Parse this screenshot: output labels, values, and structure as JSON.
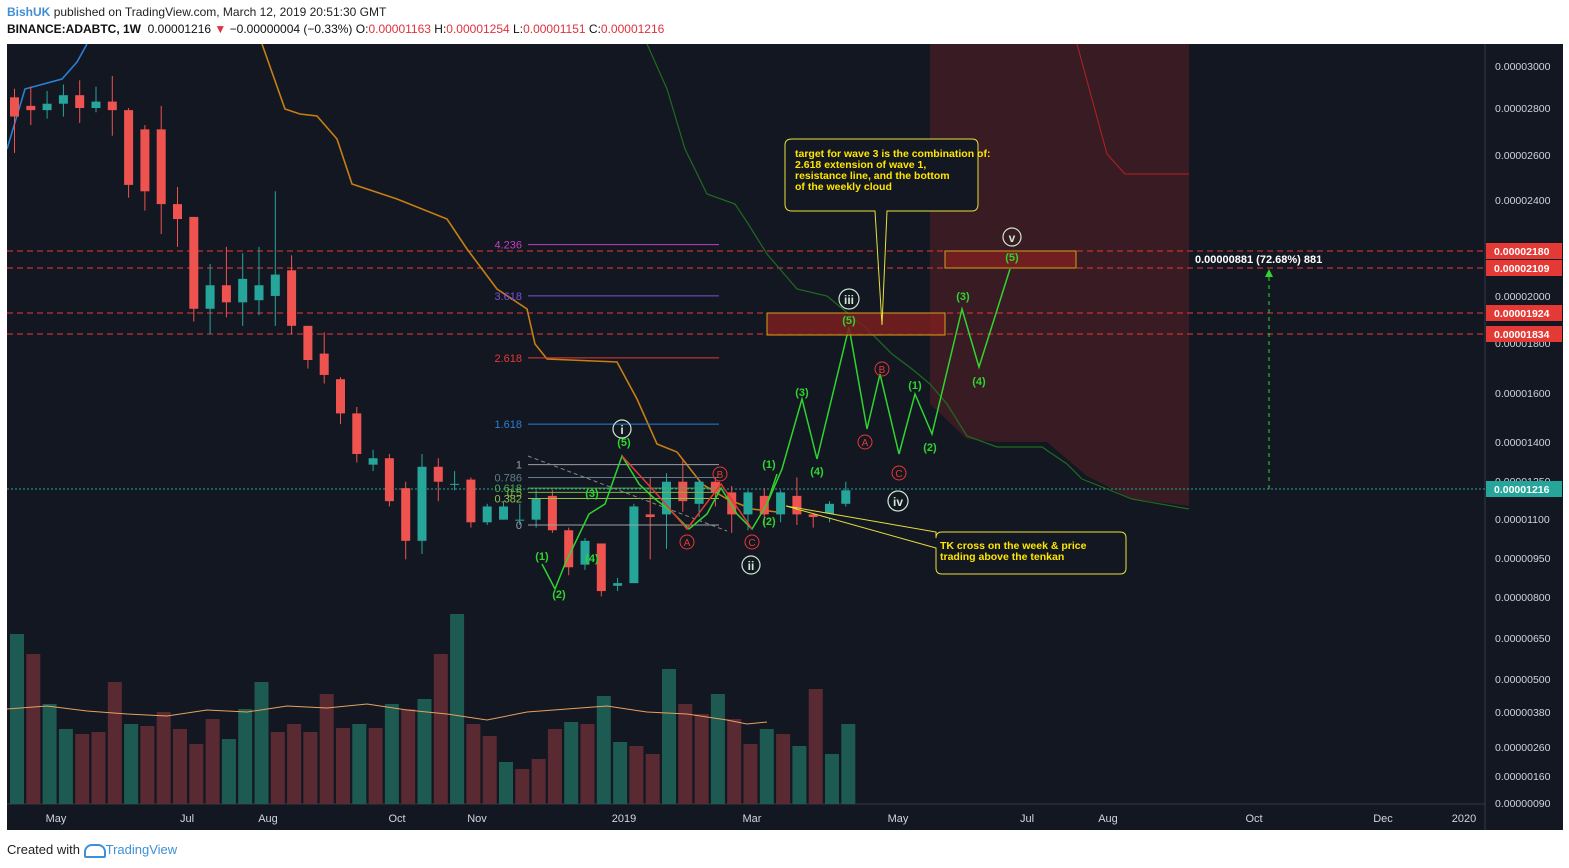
{
  "header": {
    "author": "BishUK",
    "published_text": "published on TradingView.com, March 12, 2019 20:51:30 GMT",
    "symbol": "BINANCE:ADABTC, 1W",
    "price": "0.00001216",
    "change_arrow": "▼",
    "change": "−0.00000004 (−0.33%)",
    "ohlc": [
      {
        "label": "O:",
        "value": "0.00001163"
      },
      {
        "label": "H:",
        "value": "0.00001254"
      },
      {
        "label": "L:",
        "value": "0.00001151"
      },
      {
        "label": "C:",
        "value": "0.00001216"
      }
    ]
  },
  "footer": {
    "created_with": "Created with",
    "brand": "TradingView"
  },
  "colors": {
    "background": "#131722",
    "up": "#26a69a",
    "down": "#ef5350",
    "tenkan": "#2a7fd4",
    "kijun": "#c77e12",
    "lagging": "#1f6b1f",
    "wave": "#2fd52f",
    "correction": "#e53935",
    "annotation_border": "#e8e03a"
  },
  "chart_data": {
    "type": "candlestick",
    "timeframe": "1W",
    "ylim": [
      7.5e-06,
      3.1e-06
    ],
    "y_ticks": [
      "0.00003000",
      "0.00002800",
      "0.00002600",
      "0.00002400",
      "0.00002000",
      "0.00001800",
      "0.00001600",
      "0.00001400",
      "0.00001250",
      "0.00001100",
      "0.00000950",
      "0.00000800",
      "0.00000650",
      "0.00000500",
      "0.00000380",
      "0.00000260",
      "0.00000160",
      "0.00000090"
    ],
    "y_price_labels": [
      {
        "value": "0.00002180",
        "color": "#e53935"
      },
      {
        "value": "0.00002109",
        "color": "#e53935"
      },
      {
        "value": "0.00001924",
        "color": "#e53935"
      },
      {
        "value": "0.00001834",
        "color": "#e53935"
      },
      {
        "value": "0.00001216",
        "color": "#26a69a"
      }
    ],
    "x_ticks": [
      "May",
      "Jul",
      "Aug",
      "Oct",
      "Nov",
      "2019",
      "Mar",
      "May",
      "Jul",
      "Aug",
      "Oct",
      "Dec",
      "2020"
    ],
    "candles": [
      [
        3.05e-05,
        2.96e-05,
        3.09e-05,
        2.79e-05
      ],
      [
        3.01e-05,
        2.99e-05,
        3.1e-05,
        2.92e-05
      ],
      [
        2.99e-05,
        3.02e-05,
        3.08e-05,
        2.95e-05
      ],
      [
        3.02e-05,
        3.06e-05,
        3.11e-05,
        2.96e-05
      ],
      [
        3.06e-05,
        3e-05,
        3.13e-05,
        2.93e-05
      ],
      [
        3e-05,
        3.03e-05,
        3.1e-05,
        2.98e-05
      ],
      [
        3.03e-05,
        2.99e-05,
        3.15e-05,
        2.87e-05
      ],
      [
        2.99e-05,
        2.64e-05,
        3e-05,
        2.58e-05
      ],
      [
        2.9e-05,
        2.61e-05,
        2.92e-05,
        2.52e-05
      ],
      [
        2.9e-05,
        2.55e-05,
        3.01e-05,
        2.41e-05
      ],
      [
        2.55e-05,
        2.48e-05,
        2.63e-05,
        2.35e-05
      ],
      [
        2.49e-05,
        2.06e-05,
        2.49e-05,
        2e-05
      ],
      [
        2.06e-05,
        2.17e-05,
        2.27e-05,
        1.94e-05
      ],
      [
        2.17e-05,
        2.09e-05,
        2.35e-05,
        2.02e-05
      ],
      [
        2.09e-05,
        2.2e-05,
        2.32e-05,
        1.98e-05
      ],
      [
        2.1e-05,
        2.17e-05,
        2.35e-05,
        2.03e-05
      ],
      [
        2.12e-05,
        2.22e-05,
        2.61e-05,
        1.98e-05
      ],
      [
        2.24e-05,
        1.98e-05,
        2.31e-05,
        1.94e-05
      ],
      [
        1.98e-05,
        1.82e-05,
        1.98e-05,
        1.78e-05
      ],
      [
        1.85e-05,
        1.75e-05,
        1.95e-05,
        1.71e-05
      ],
      [
        1.73e-05,
        1.57e-05,
        1.74e-05,
        1.52e-05
      ],
      [
        1.57e-05,
        1.38e-05,
        1.6e-05,
        1.34e-05
      ],
      [
        1.33e-05,
        1.36e-05,
        1.4e-05,
        1.3e-05
      ],
      [
        1.36e-05,
        1.17e-05,
        1.38e-05,
        1.15e-05
      ],
      [
        1.22e-05,
        1.02e-05,
        1.25e-05,
        9.5e-06
      ],
      [
        1.02e-05,
        1.32e-05,
        1.38e-05,
        9.7e-06
      ],
      [
        1.32e-05,
        1.25e-05,
        1.36e-05,
        1.17e-05
      ],
      [
        1.24e-05,
        1.24e-05,
        1.3e-05,
        1.21e-05
      ],
      [
        1.26e-05,
        1.09e-05,
        1.27e-05,
        1.07e-05
      ],
      [
        1.09e-05,
        1.15e-05,
        1.16e-05,
        1.08e-05
      ],
      [
        1.1e-05,
        1.15e-05,
        1.17e-05,
        1.1e-05
      ],
      [
        1.1e-05,
        1.1e-05,
        1.16e-05,
        1.08e-05
      ],
      [
        1.1e-05,
        1.18e-05,
        1.21e-05,
        1.07e-05
      ],
      [
        1.19e-05,
        1.06e-05,
        1.21e-05,
        1.05e-05
      ],
      [
        1.06e-05,
        9.2e-06,
        1.07e-05,
        8.9e-06
      ],
      [
        9.3e-06,
        1.02e-05,
        1.03e-05,
        9.1e-06
      ],
      [
        1.01e-05,
        8.3e-06,
        1.01e-05,
        8.1e-06
      ],
      [
        8.5e-06,
        8.6e-06,
        8.8e-06,
        8.3e-06
      ],
      [
        8.6e-06,
        1.15e-05,
        1.16e-05,
        8.6e-06
      ],
      [
        1.12e-05,
        1.11e-05,
        1.27e-05,
        9.5e-06
      ],
      [
        1.12e-05,
        1.25e-05,
        1.29e-05,
        9.9e-06
      ],
      [
        1.25e-05,
        1.17e-05,
        1.35e-05,
        1.13e-05
      ],
      [
        1.16e-05,
        1.25e-05,
        1.26e-05,
        1.11e-05
      ],
      [
        1.25e-05,
        1.2e-05,
        1.27e-05,
        1.15e-05
      ],
      [
        1.2e-05,
        1.12e-05,
        1.23e-05,
        1.05e-05
      ],
      [
        1.12e-05,
        1.2e-05,
        1.21e-05,
        1.06e-05
      ],
      [
        1.19e-05,
        1.12e-05,
        1.22e-05,
        1.08e-05
      ],
      [
        1.12e-05,
        1.2e-05,
        1.21e-05,
        1.09e-05
      ],
      [
        1.19e-05,
        1.12e-05,
        1.27e-05,
        1.08e-05
      ],
      [
        1.12e-05,
        1.11e-05,
        1.13e-05,
        1.07e-05
      ],
      [
        1.11e-05,
        1.16e-05,
        1.17e-05,
        1.09e-05
      ],
      [
        1.16e-05,
        1.21e-05,
        1.25e-05,
        1.15e-05
      ]
    ],
    "volume_colors": [
      "up",
      "down",
      "up",
      "up",
      "down",
      "down",
      "down",
      "up",
      "down",
      "down",
      "down",
      "down",
      "down",
      "up",
      "up",
      "up",
      "down",
      "down",
      "down",
      "down",
      "down",
      "up",
      "down",
      "up",
      "down",
      "up",
      "down",
      "up",
      "down",
      "down",
      "up",
      "down",
      "down",
      "down",
      "up",
      "down",
      "up",
      "up",
      "down",
      "down",
      "up",
      "down",
      "down",
      "up",
      "down",
      "down",
      "up",
      "down",
      "up",
      "down",
      "up",
      "up"
    ],
    "fib_levels": [
      {
        "label": "4.236",
        "value": 2.36e-05,
        "color": "#c040c0"
      },
      {
        "label": "3.618",
        "value": 2.12e-05,
        "color": "#7a52d6"
      },
      {
        "label": "2.618",
        "value": 1.83e-05,
        "color": "#e53935"
      },
      {
        "label": "1.618",
        "value": 1.52e-05,
        "color": "#2a7fd4"
      },
      {
        "label": "1",
        "value": 1.33e-05,
        "color": "#9aa0a6"
      },
      {
        "label": "0.786",
        "value": 1.27e-05,
        "color": "#607d8b"
      },
      {
        "label": "0.618",
        "value": 1.22e-05,
        "color": "#4caf50"
      },
      {
        "label": "0.5",
        "value": 1.2e-05,
        "color": "#7cb342"
      },
      {
        "label": "0.382",
        "value": 1.18e-05,
        "color": "#8bc34a"
      },
      {
        "label": "0",
        "value": 1.08e-05,
        "color": "#9aa0a6"
      }
    ],
    "wave_labels": {
      "subwave_1": "(1)",
      "subwave_2": "(2)",
      "subwave_3": "(3)",
      "subwave_4": "(4)",
      "subwave_5": "(5)",
      "wave_i": "i",
      "wave_ii": "ii",
      "wave_iii": "iii",
      "wave_iv": "iv",
      "wave_v": "v",
      "A": "A",
      "B": "B",
      "C": "C"
    },
    "measure_label": "0.00000881 (72.68%) 881",
    "annotations": {
      "target": "target for wave 3 is the combination of:\n2.618 extension of wave 1,\nresistance line, and the bottom\nof the weekly cloud",
      "tk_cross": "TK cross on the week & price\ntrading above the tenkan"
    }
  }
}
